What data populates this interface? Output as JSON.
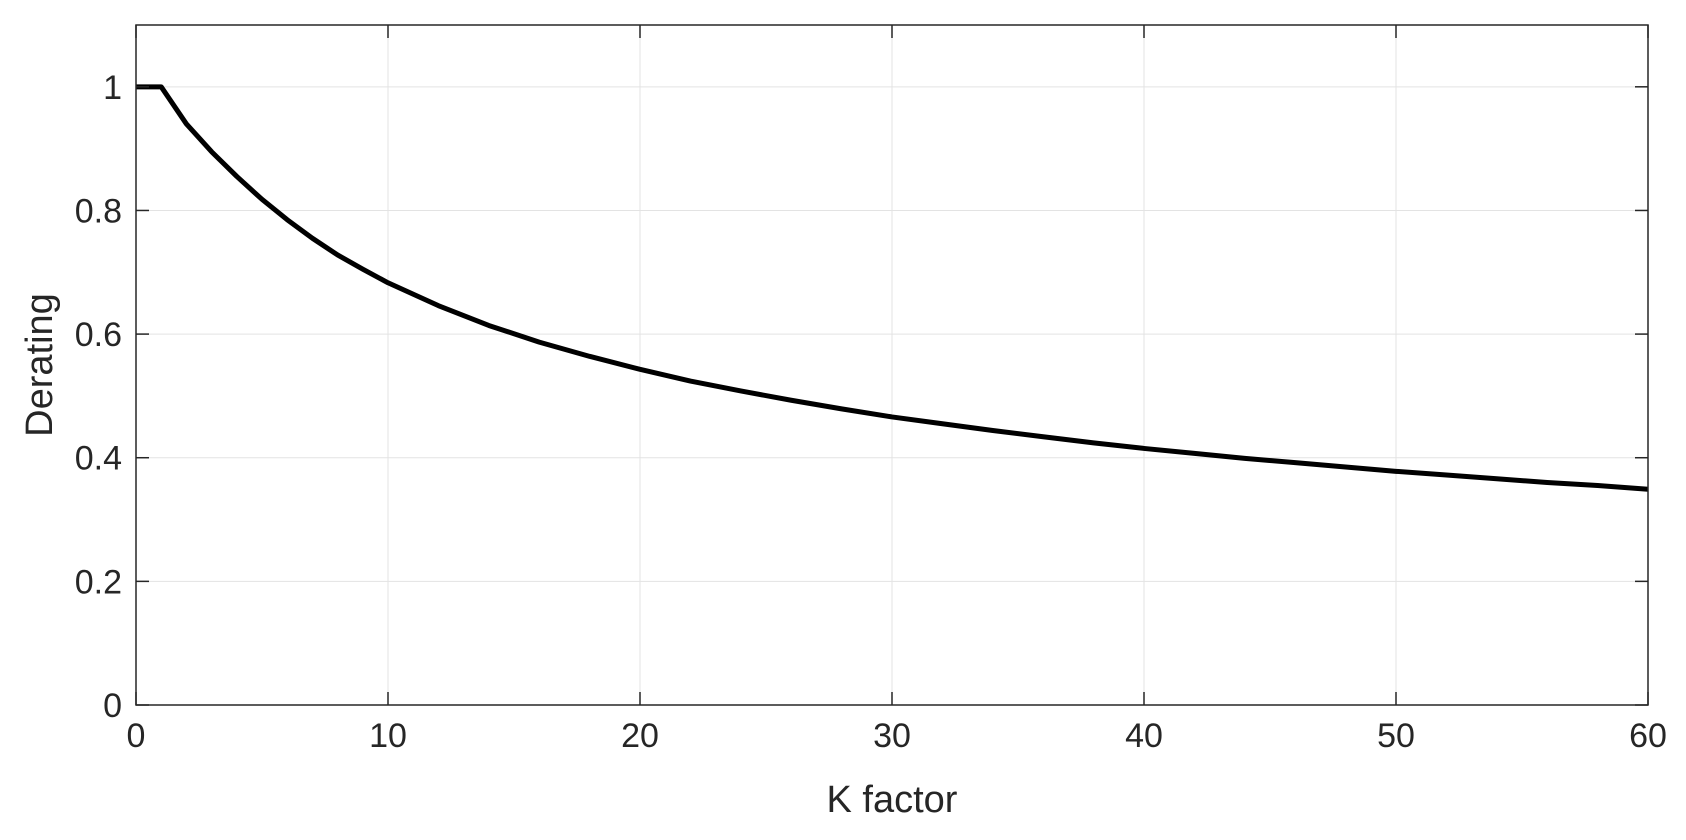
{
  "chart_data": {
    "type": "line",
    "title": "",
    "xlabel": "K factor",
    "ylabel": "Derating",
    "xlim": [
      0,
      60
    ],
    "ylim": [
      0,
      1.1
    ],
    "xticks": [
      0,
      10,
      20,
      30,
      40,
      50,
      60
    ],
    "yticks": [
      0,
      0.2,
      0.4,
      0.6,
      0.8,
      1
    ],
    "xtick_labels": [
      "0",
      "10",
      "20",
      "30",
      "40",
      "50",
      "60"
    ],
    "ytick_labels": [
      "0",
      "0.2",
      "0.4",
      "0.6",
      "0.8",
      "1"
    ],
    "grid": true,
    "legend": null,
    "line_color": "#000000",
    "series": [
      {
        "x": [
          0,
          1,
          2,
          3,
          4,
          5,
          6,
          7,
          8,
          9,
          10,
          12,
          14,
          16,
          18,
          20,
          22,
          24,
          26,
          28,
          30,
          32,
          34,
          36,
          38,
          40,
          42,
          44,
          46,
          48,
          50,
          52,
          54,
          56,
          58,
          60
        ],
        "values": [
          1.0,
          1.0,
          0.94,
          0.895,
          0.855,
          0.818,
          0.785,
          0.755,
          0.728,
          0.705,
          0.683,
          0.646,
          0.614,
          0.587,
          0.564,
          0.543,
          0.524,
          0.508,
          0.493,
          0.479,
          0.466,
          0.455,
          0.444,
          0.434,
          0.424,
          0.415,
          0.407,
          0.399,
          0.392,
          0.385,
          0.378,
          0.372,
          0.366,
          0.36,
          0.355,
          0.349
        ]
      }
    ]
  }
}
